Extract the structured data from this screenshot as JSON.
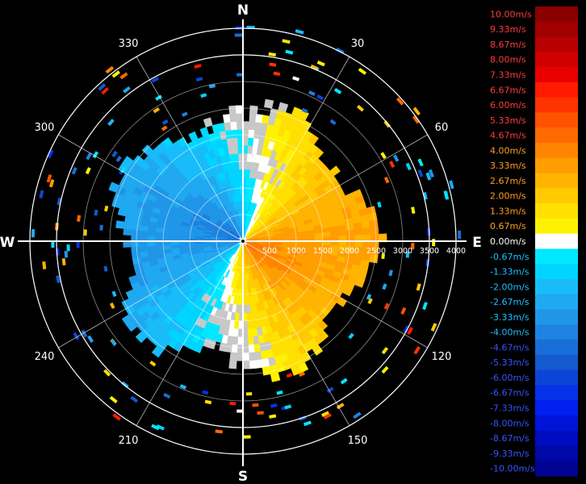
{
  "compass": {
    "north": "N",
    "south": "S",
    "east": "E",
    "west": "W"
  },
  "azimuth_labels": [
    {
      "deg": 30,
      "text": "30"
    },
    {
      "deg": 60,
      "text": "60"
    },
    {
      "deg": 120,
      "text": "120"
    },
    {
      "deg": 150,
      "text": "150"
    },
    {
      "deg": 210,
      "text": "210"
    },
    {
      "deg": 240,
      "text": "240"
    },
    {
      "deg": 300,
      "text": "300"
    },
    {
      "deg": 330,
      "text": "330"
    }
  ],
  "range_labels": [
    "500",
    "1000",
    "1500",
    "2000",
    "2500",
    "3000",
    "3500",
    "4000"
  ],
  "range_max": 4000,
  "ring_steps": [
    500,
    1000,
    1500,
    2000,
    2500,
    3000
  ],
  "outer_rings": [
    3500,
    4000
  ],
  "colorbar": [
    {
      "label": "10.00m/s",
      "color": "#8a0000"
    },
    {
      "label": "9.33m/s",
      "color": "#a00000"
    },
    {
      "label": "8.67m/s",
      "color": "#b80000"
    },
    {
      "label": "8.00m/s",
      "color": "#d00000"
    },
    {
      "label": "7.33m/s",
      "color": "#e80000"
    },
    {
      "label": "6.67m/s",
      "color": "#ff1a00"
    },
    {
      "label": "6.00m/s",
      "color": "#ff3300"
    },
    {
      "label": "5.33m/s",
      "color": "#ff5200"
    },
    {
      "label": "4.67m/s",
      "color": "#ff6a00"
    },
    {
      "label": "4.00m/s",
      "color": "#ff8400"
    },
    {
      "label": "3.33m/s",
      "color": "#ff9e00"
    },
    {
      "label": "2.67m/s",
      "color": "#ffb400"
    },
    {
      "label": "2.00m/s",
      "color": "#ffca00"
    },
    {
      "label": "1.33m/s",
      "color": "#ffe000"
    },
    {
      "label": "0.67m/s",
      "color": "#fff200"
    },
    {
      "label": "0.00m/s",
      "color": "#ffffff"
    },
    {
      "label": "-0.67m/s",
      "color": "#00e8ff"
    },
    {
      "label": "-1.33m/s",
      "color": "#00d4ff"
    },
    {
      "label": "-2.00m/s",
      "color": "#18bcf8"
    },
    {
      "label": "-2.67m/s",
      "color": "#20a8f0"
    },
    {
      "label": "-3.33m/s",
      "color": "#2096e8"
    },
    {
      "label": "-4.00m/s",
      "color": "#1e82e0"
    },
    {
      "label": "-4.67m/s",
      "color": "#186ed8"
    },
    {
      "label": "-5.33m/s",
      "color": "#145ad0"
    },
    {
      "label": "-6.00m/s",
      "color": "#0c44d8"
    },
    {
      "label": "-6.67m/s",
      "color": "#0632e8"
    },
    {
      "label": "-7.33m/s",
      "color": "#0020f0"
    },
    {
      "label": "-8.00m/s",
      "color": "#0014d8"
    },
    {
      "label": "-8.67m/s",
      "color": "#000cc0"
    },
    {
      "label": "-9.33m/s",
      "color": "#0008a8"
    },
    {
      "label": "-10.00m/s",
      "color": "#000490"
    }
  ],
  "colors": {
    "background": "#000000",
    "axis": "#ffffff",
    "no_data": "#c8c8c8",
    "approaching": "#1e82e0",
    "receding": "#ff9e00"
  }
}
